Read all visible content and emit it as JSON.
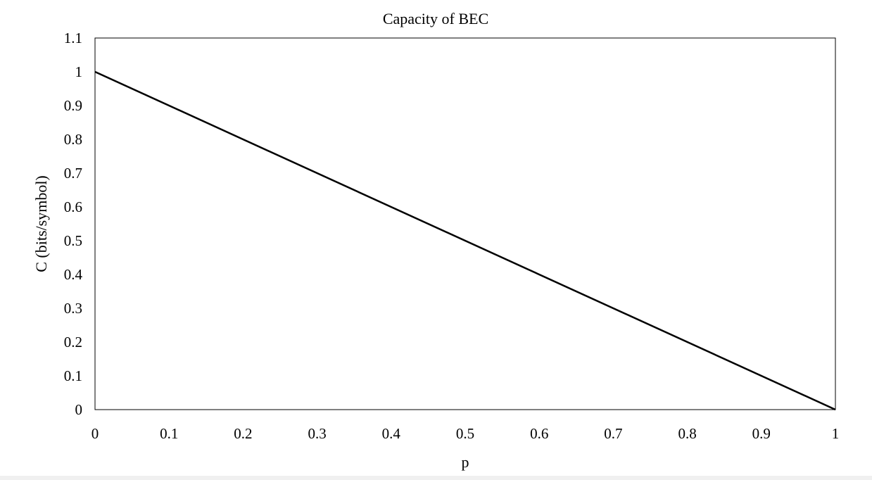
{
  "chart_data": {
    "type": "line",
    "title": "Capacity of BEC",
    "xlabel": "p",
    "ylabel": "C (bits/symbol)",
    "xlim": [
      0,
      1
    ],
    "ylim": [
      0,
      1.1
    ],
    "grid": false,
    "legend": "none",
    "x_ticks": [
      "0",
      "0.1",
      "0.2",
      "0.3",
      "0.4",
      "0.5",
      "0.6",
      "0.7",
      "0.8",
      "0.9",
      "1"
    ],
    "y_ticks": [
      "0",
      "0.1",
      "0.2",
      "0.3",
      "0.4",
      "0.5",
      "0.6",
      "0.7",
      "0.8",
      "0.9",
      "1",
      "1.1"
    ],
    "series": [
      {
        "color": "#000000",
        "x": [
          0,
          1
        ],
        "y": [
          1,
          0
        ]
      }
    ]
  }
}
